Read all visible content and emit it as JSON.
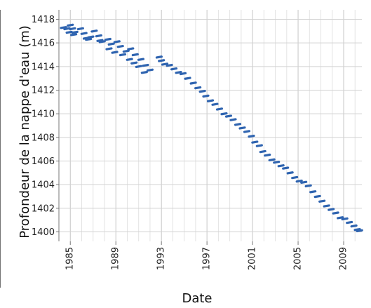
{
  "chart_data": {
    "type": "scatter",
    "title": "",
    "xlabel": "Date",
    "ylabel": "Profondeur de la nappe d'eau (m)",
    "xlim": [
      1984.0,
      2010.6
    ],
    "ylim": [
      1399.2,
      1418.8
    ],
    "grid": true,
    "color": "#2f64b0",
    "x_ticks": [
      1985,
      1989,
      1993,
      1997,
      2001,
      2005,
      2009
    ],
    "y_ticks": [
      1400,
      1402,
      1404,
      1406,
      1408,
      1410,
      1412,
      1414,
      1416,
      1418
    ],
    "series": [
      {
        "values": [
          [
            1984.4,
            1417.3
          ],
          [
            1984.7,
            1417.2
          ],
          [
            1985.0,
            1417.5
          ],
          [
            1985.2,
            1417.2
          ],
          [
            1985.4,
            1416.9
          ],
          [
            1985.9,
            1417.2
          ],
          [
            1986.2,
            1416.8
          ],
          [
            1986.4,
            1416.4
          ],
          [
            1986.8,
            1416.5
          ],
          [
            1987.1,
            1417.0
          ],
          [
            1987.5,
            1416.6
          ],
          [
            1987.8,
            1416.1
          ],
          [
            1988.3,
            1416.3
          ],
          [
            1988.6,
            1415.9
          ],
          [
            1989.1,
            1416.1
          ],
          [
            1989.4,
            1415.7
          ],
          [
            1989.9,
            1415.3
          ],
          [
            1990.3,
            1415.5
          ],
          [
            1990.7,
            1415.0
          ],
          [
            1991.2,
            1414.6
          ],
          [
            1991.6,
            1414.1
          ],
          [
            1992.0,
            1413.7
          ],
          [
            1984.9,
            1416.9
          ],
          [
            1985.3,
            1416.7
          ],
          [
            1986.6,
            1416.3
          ],
          [
            1987.6,
            1416.2
          ],
          [
            1988.4,
            1415.5
          ],
          [
            1988.9,
            1415.2
          ],
          [
            1989.6,
            1415.0
          ],
          [
            1990.2,
            1414.6
          ],
          [
            1990.6,
            1414.3
          ],
          [
            1991.0,
            1414.0
          ],
          [
            1991.5,
            1413.5
          ],
          [
            1992.8,
            1414.8
          ],
          [
            1993.0,
            1414.5
          ],
          [
            1993.3,
            1414.2
          ],
          [
            1993.7,
            1414.1
          ],
          [
            1994.1,
            1413.8
          ],
          [
            1994.5,
            1413.5
          ],
          [
            1994.9,
            1413.4
          ],
          [
            1995.3,
            1413.0
          ],
          [
            1995.8,
            1412.6
          ],
          [
            1996.2,
            1412.2
          ],
          [
            1996.6,
            1411.9
          ],
          [
            1996.9,
            1411.5
          ],
          [
            1997.3,
            1411.1
          ],
          [
            1997.7,
            1410.8
          ],
          [
            1998.1,
            1410.4
          ],
          [
            1998.5,
            1410.0
          ],
          [
            1998.9,
            1409.8
          ],
          [
            1999.3,
            1409.5
          ],
          [
            1999.7,
            1409.1
          ],
          [
            2000.1,
            1408.8
          ],
          [
            2000.5,
            1408.5
          ],
          [
            2000.9,
            1408.1
          ],
          [
            2001.2,
            1407.6
          ],
          [
            2001.6,
            1407.3
          ],
          [
            2001.9,
            1406.8
          ],
          [
            2002.3,
            1406.5
          ],
          [
            2002.7,
            1406.1
          ],
          [
            2003.1,
            1405.9
          ],
          [
            2003.5,
            1405.6
          ],
          [
            2003.9,
            1405.4
          ],
          [
            2004.3,
            1405.0
          ],
          [
            2004.7,
            1404.6
          ],
          [
            2005.1,
            1404.3
          ],
          [
            2005.5,
            1404.2
          ],
          [
            2005.9,
            1403.9
          ],
          [
            2006.3,
            1403.4
          ],
          [
            2006.7,
            1403.0
          ],
          [
            2007.1,
            1402.6
          ],
          [
            2007.5,
            1402.2
          ],
          [
            2007.9,
            1401.9
          ],
          [
            2008.3,
            1401.6
          ],
          [
            2008.7,
            1401.2
          ],
          [
            2009.1,
            1401.1
          ],
          [
            2009.5,
            1400.8
          ],
          [
            2009.9,
            1400.5
          ],
          [
            2010.2,
            1400.2
          ],
          [
            2010.4,
            1400.1
          ]
        ]
      }
    ]
  }
}
